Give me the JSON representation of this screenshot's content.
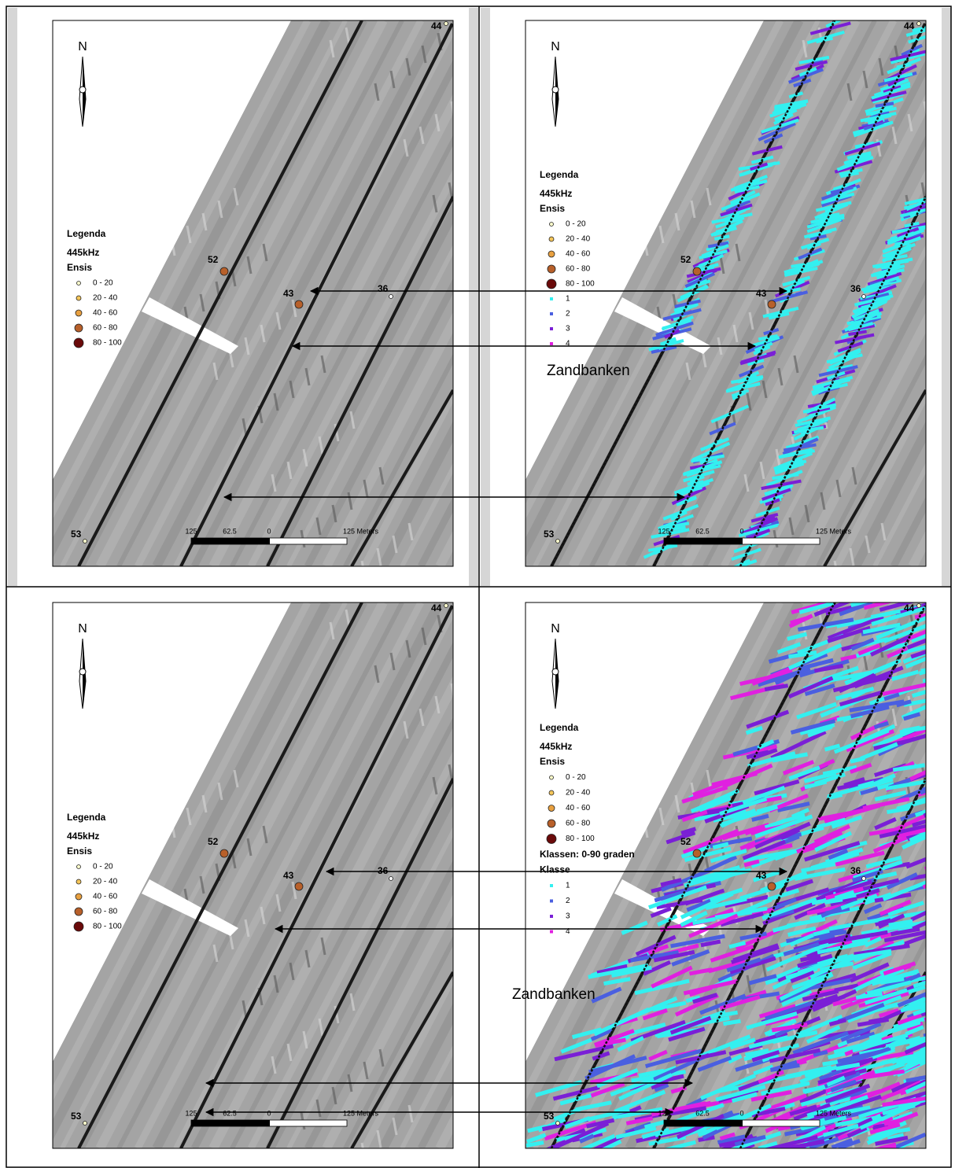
{
  "panels": [
    {
      "north": "N",
      "points": [
        {
          "label": "44"
        },
        {
          "label": "52"
        },
        {
          "label": "43"
        },
        {
          "label": "36"
        },
        {
          "label": "53"
        }
      ],
      "legend": {
        "title": "Legenda",
        "frequency": "445kHz",
        "species": "Ensis",
        "classes": [
          "0 - 20",
          "20 - 40",
          "40 - 60",
          "60 - 80",
          "80 - 100"
        ]
      },
      "scale": [
        "125",
        "62.5",
        "0",
        "125 Meters"
      ]
    },
    {
      "north": "N",
      "points": [
        {
          "label": "44"
        },
        {
          "label": "52"
        },
        {
          "label": "43"
        },
        {
          "label": "36"
        },
        {
          "label": "53"
        }
      ],
      "legend": {
        "title": "Legenda",
        "frequency": "445kHz",
        "species": "Ensis",
        "classes": [
          "0 - 20",
          "20 - 40",
          "40 - 60",
          "60 - 80",
          "80 - 100"
        ],
        "klasse": [
          "1",
          "2",
          "3",
          "4"
        ]
      },
      "scale": [
        "125",
        "62.5",
        "0",
        "125 Meters"
      ],
      "annotation": "Zandbanken"
    },
    {
      "north": "N",
      "points": [
        {
          "label": "44"
        },
        {
          "label": "52"
        },
        {
          "label": "43"
        },
        {
          "label": "36"
        },
        {
          "label": "53"
        }
      ],
      "legend": {
        "title": "Legenda",
        "frequency": "445kHz",
        "species": "Ensis",
        "classes": [
          "0 - 20",
          "20 - 40",
          "40 - 60",
          "60 - 80",
          "80 - 100"
        ]
      },
      "scale": [
        "125",
        "62.5",
        "0",
        "125 Meters"
      ]
    },
    {
      "north": "N",
      "points": [
        {
          "label": "44"
        },
        {
          "label": "52"
        },
        {
          "label": "43"
        },
        {
          "label": "36"
        },
        {
          "label": "53"
        }
      ],
      "legend": {
        "title": "Legenda",
        "frequency": "445kHz",
        "species": "Ensis",
        "classes": [
          "0 - 20",
          "20 - 40",
          "40 - 60",
          "60 - 80",
          "80 - 100"
        ],
        "klasse_group": "Klassen: 0-90 graden",
        "klasse_title": "Klasse",
        "klasse": [
          "1",
          "2",
          "3",
          "4"
        ]
      },
      "scale": [
        "125",
        "62.5",
        "0",
        "125 Meters"
      ],
      "annotation": "Zandbanken"
    }
  ]
}
